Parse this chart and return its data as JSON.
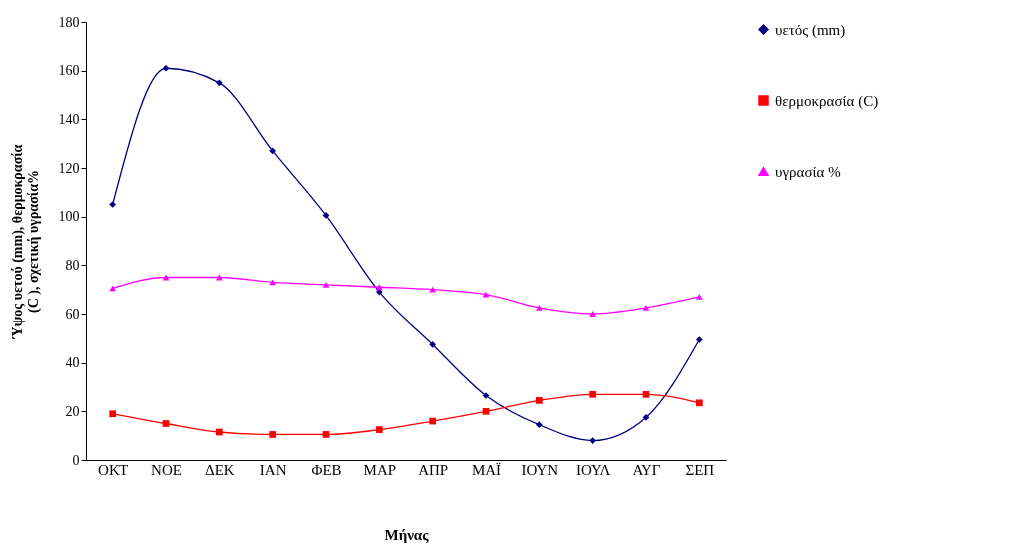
{
  "chart_data": {
    "type": "line",
    "xlabel": "Μήνας",
    "ylabel": "Ύψος υετού (mm), θερμοκρασία (C ), σχετική υγρασία%",
    "categories": [
      "ΟΚΤ",
      "ΝΟΕ",
      "ΔΕΚ",
      "ΙΑΝ",
      "ΦΕΒ",
      "ΜΑΡ",
      "ΑΠΡ",
      "ΜΑΪ",
      "ΙΟΥΝ",
      "ΙΟΥΛ",
      "ΑΥΓ",
      "ΣΕΠ"
    ],
    "series": [
      {
        "name": "υετός (mm)",
        "color": "#000080",
        "marker": "diamond",
        "values": [
          105,
          161,
          155,
          127,
          100.5,
          69,
          47.5,
          26.5,
          14.5,
          8,
          17.5,
          49.5
        ]
      },
      {
        "name": "θερμοκρασία (C)",
        "color": "#ff0000",
        "marker": "square",
        "values": [
          19,
          15,
          11.5,
          10.5,
          10.5,
          12.5,
          16,
          20,
          24.5,
          27,
          27,
          23.5
        ]
      },
      {
        "name": "υγρασία %",
        "color": "#ff00ff",
        "marker": "triangle",
        "values": [
          70.5,
          75,
          75,
          73,
          72,
          71,
          70,
          68,
          62.5,
          60,
          62.5,
          67
        ]
      }
    ],
    "ylim": [
      0,
      180
    ],
    "yticks": [
      0,
      20,
      40,
      60,
      80,
      100,
      120,
      140,
      160,
      180
    ],
    "grid": false,
    "legend": "right"
  }
}
